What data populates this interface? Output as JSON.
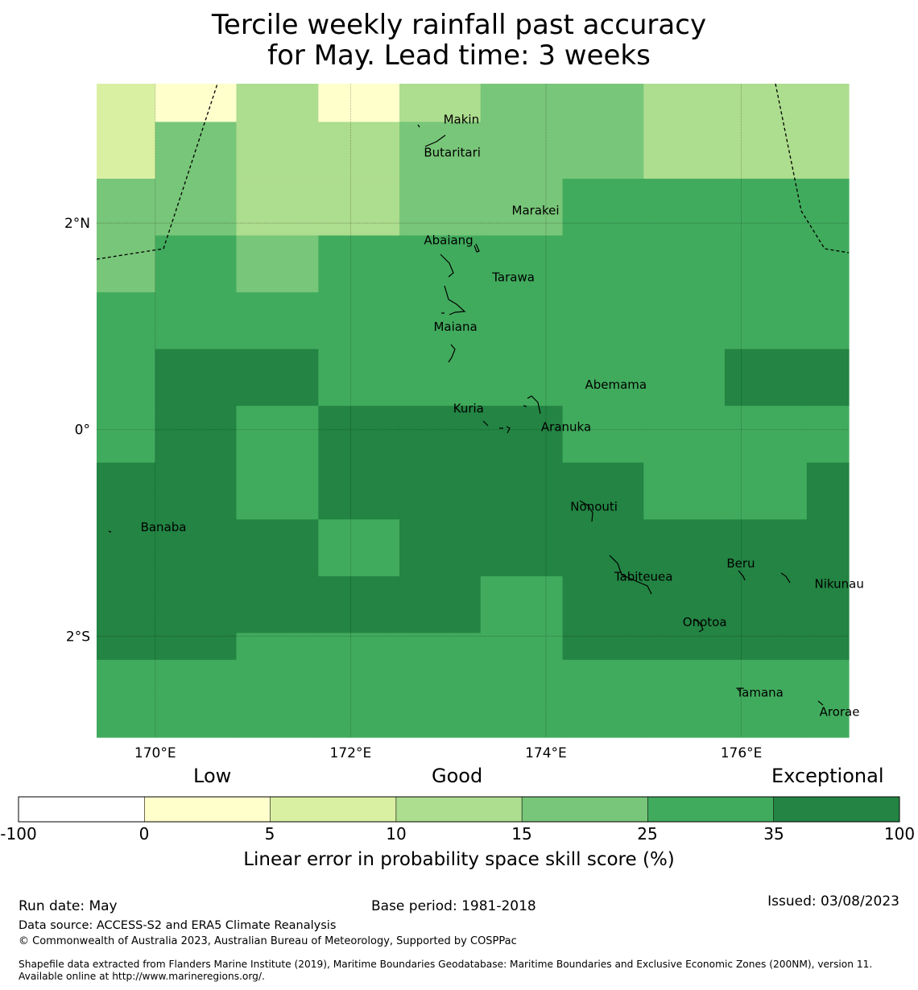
{
  "title": {
    "line1": "Tercile weekly rainfall past accuracy",
    "line2": "for May. Lead time: 3 weeks"
  },
  "map": {
    "lon_range": [
      169.4,
      177.1
    ],
    "lat_range": [
      -2.98,
      3.35
    ],
    "x_ticks": [
      {
        "lon": 170,
        "label": "170°E"
      },
      {
        "lon": 172,
        "label": "172°E"
      },
      {
        "lon": 174,
        "label": "174°E"
      },
      {
        "lon": 176,
        "label": "176°E"
      }
    ],
    "y_ticks": [
      {
        "lat": 2,
        "label": "2°N"
      },
      {
        "lat": 0,
        "label": "0°"
      },
      {
        "lat": -2,
        "label": "2°S"
      }
    ],
    "grid": true,
    "columns": [
      169.4,
      170.0,
      170.83,
      171.67,
      172.5,
      173.33,
      174.17,
      175.0,
      175.83,
      176.67,
      177.1
    ],
    "rows": [
      3.35,
      2.98,
      2.43,
      1.88,
      1.33,
      0.78,
      0.23,
      -0.32,
      -0.87,
      -1.42,
      -1.97,
      -2.23,
      -2.98
    ],
    "skill_classes": [
      [
        2,
        1,
        3,
        1,
        3,
        4,
        4,
        3,
        3,
        3
      ],
      [
        2,
        4,
        3,
        3,
        4,
        4,
        4,
        3,
        3,
        3
      ],
      [
        4,
        4,
        3,
        3,
        4,
        4,
        5,
        5,
        5,
        5
      ],
      [
        4,
        5,
        4,
        5,
        5,
        5,
        5,
        5,
        5,
        5
      ],
      [
        5,
        5,
        5,
        5,
        5,
        5,
        5,
        5,
        5,
        5
      ],
      [
        5,
        6,
        6,
        5,
        5,
        5,
        5,
        5,
        6,
        6
      ],
      [
        5,
        6,
        5,
        6,
        6,
        6,
        5,
        5,
        5,
        5
      ],
      [
        6,
        6,
        5,
        6,
        6,
        6,
        6,
        5,
        5,
        6
      ],
      [
        6,
        6,
        6,
        5,
        6,
        6,
        6,
        6,
        6,
        6
      ],
      [
        6,
        6,
        6,
        6,
        6,
        5,
        6,
        6,
        6,
        6
      ],
      [
        6,
        6,
        5,
        5,
        5,
        5,
        6,
        6,
        6,
        6
      ],
      [
        5,
        5,
        5,
        5,
        5,
        5,
        5,
        5,
        5,
        5
      ]
    ],
    "place_labels": [
      {
        "name": "Makin",
        "lon": 172.95,
        "lat": 3.0
      },
      {
        "name": "Butaritari",
        "lon": 172.75,
        "lat": 2.68
      },
      {
        "name": "Marakei",
        "lon": 173.65,
        "lat": 2.12
      },
      {
        "name": "Abaiang",
        "lon": 172.75,
        "lat": 1.83
      },
      {
        "name": "Tarawa",
        "lon": 173.45,
        "lat": 1.47
      },
      {
        "name": "Maiana",
        "lon": 172.85,
        "lat": 0.99
      },
      {
        "name": "Abemama",
        "lon": 174.4,
        "lat": 0.43
      },
      {
        "name": "Kuria",
        "lon": 173.05,
        "lat": 0.2
      },
      {
        "name": "Aranuka",
        "lon": 173.95,
        "lat": 0.02
      },
      {
        "name": "Nonouti",
        "lon": 174.25,
        "lat": -0.75
      },
      {
        "name": "Banaba",
        "lon": 169.85,
        "lat": -0.95
      },
      {
        "name": "Tabiteuea",
        "lon": 174.7,
        "lat": -1.43
      },
      {
        "name": "Beru",
        "lon": 175.85,
        "lat": -1.3
      },
      {
        "name": "Nikunau",
        "lon": 176.75,
        "lat": -1.5
      },
      {
        "name": "Onotoa",
        "lon": 175.4,
        "lat": -1.87
      },
      {
        "name": "Tamana",
        "lon": 175.95,
        "lat": -2.55
      },
      {
        "name": "Arorae",
        "lon": 176.8,
        "lat": -2.74
      }
    ]
  },
  "colorbar": {
    "category_labels": [
      "Low",
      "Good",
      "Exceptional"
    ],
    "colors": [
      "#ffffff",
      "#ffffcc",
      "#d9f0a3",
      "#addd8e",
      "#78c679",
      "#41ab5d",
      "#238443"
    ],
    "ticks": [
      "-100",
      "0",
      "5",
      "10",
      "15",
      "25",
      "35",
      "100"
    ],
    "label": "Linear error in probability space skill score (%)"
  },
  "footer": {
    "run_date": "Run date: May",
    "base_period": "Base period: 1981-2018",
    "issued": "Issued: 03/08/2023",
    "data_source": "Data source: ACCESS-S2 and ERA5 Climate Reanalysis",
    "copyright": "© Commonwealth of Australia 2023, Australian Bureau of Meteorology, Supported by COSPPac",
    "shapefile": "Shapefile data extracted from Flanders Marine Institute (2019), Maritime Boundaries Geodatabase: Maritime Boundaries and Exclusive Economic Zones (200NM), version 11. Available online at http://www.marineregions.org/."
  }
}
